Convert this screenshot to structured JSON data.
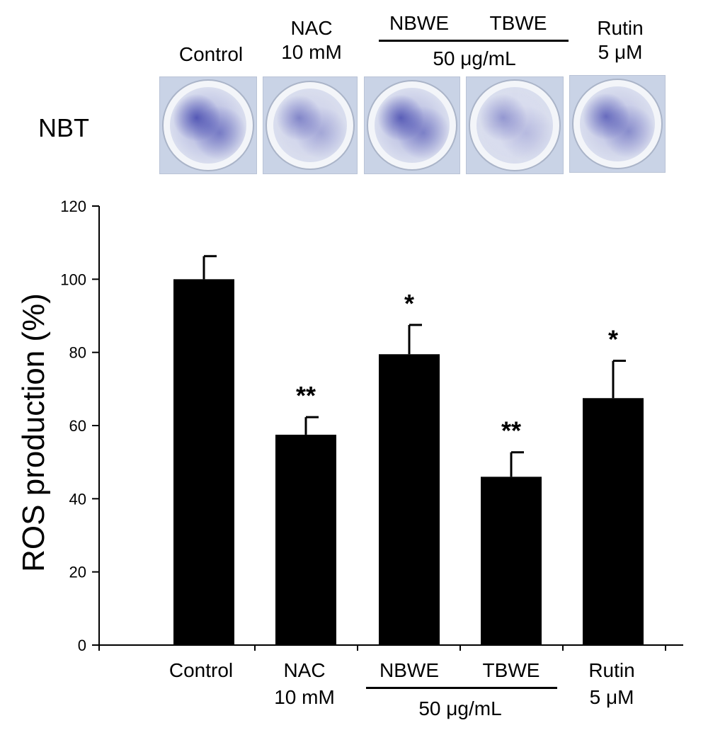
{
  "nbt_label": "NBT",
  "header": {
    "control": "Control",
    "nac_line1": "NAC",
    "nac_line2": "10 mM",
    "nbwe": "NBWE",
    "tbwe": "TBWE",
    "extract_dose": "50 μg/mL",
    "rutin_line1": "Rutin",
    "rutin_line2": "5 μM"
  },
  "footer": {
    "control": "Control",
    "nac_line1": "NAC",
    "nac_line2": "10 mM",
    "nbwe": "NBWE",
    "tbwe": "TBWE",
    "extract_dose": "50 μg/mL",
    "rutin_line1": "Rutin",
    "rutin_line2": "5 μM"
  },
  "wells": [
    {
      "name": "Control",
      "stain": 0.75
    },
    {
      "name": "NAC",
      "stain": 0.3
    },
    {
      "name": "NBWE",
      "stain": 0.7
    },
    {
      "name": "TBWE",
      "stain": 0.15
    },
    {
      "name": "Rutin",
      "stain": 0.55
    }
  ],
  "colors": {
    "bar": "#000000",
    "stain": "#4a4fb0",
    "well_bg": "#e6eaf2"
  },
  "chart_data": {
    "type": "bar",
    "categories": [
      "Control",
      "NAC 10 mM",
      "NBWE",
      "TBWE",
      "Rutin 5 μM"
    ],
    "values": [
      100,
      57.5,
      79.5,
      46,
      67.5
    ],
    "errors": [
      6.3,
      4.8,
      8.0,
      6.7,
      10.2
    ],
    "annotations": [
      "",
      "**",
      "*",
      "**",
      "*"
    ],
    "ylabel": "ROS production (%)",
    "ylim": [
      0,
      120
    ],
    "yticks": [
      0,
      20,
      40,
      60,
      80,
      100,
      120
    ],
    "grid": false
  }
}
